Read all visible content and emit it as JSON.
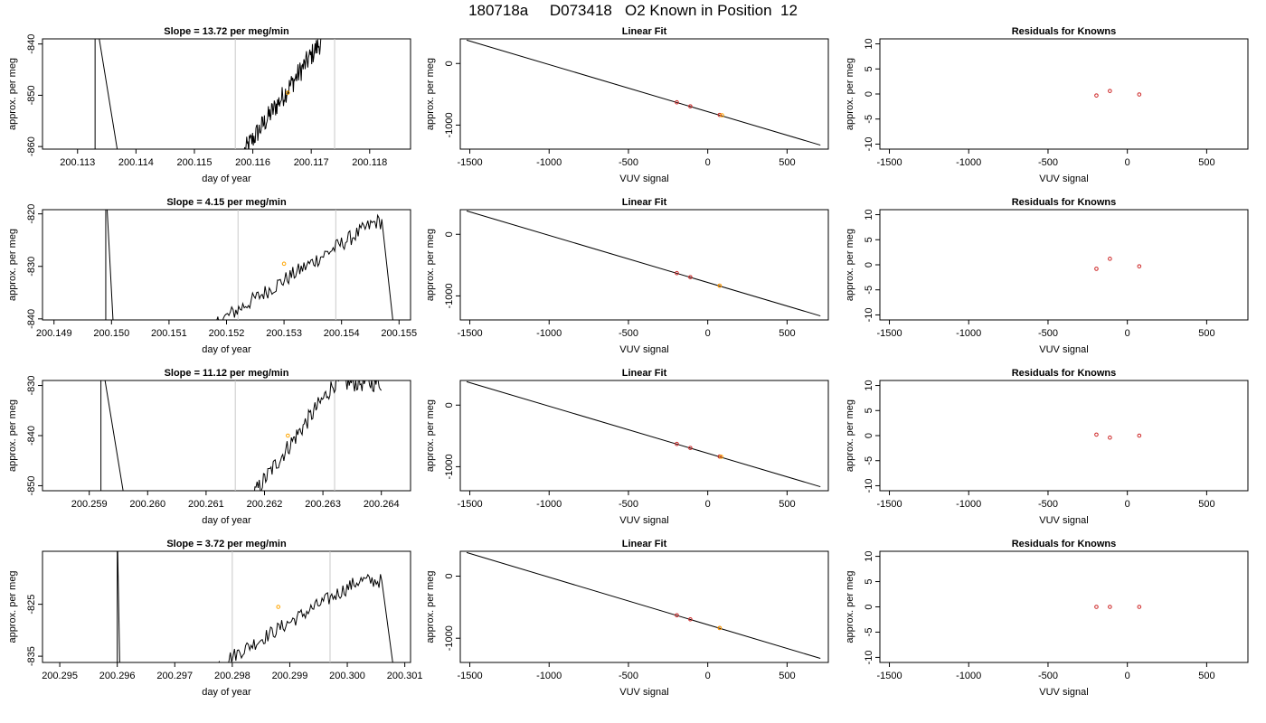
{
  "title": "180718a     D073418   O2 Known in Position  12",
  "colors": {
    "trace": "#000000",
    "vline": "#c8c8c8",
    "highlight": "#ffa500",
    "known": "#cd2626"
  },
  "chart_data": {
    "rows": [
      {
        "slope_panel": {
          "type": "line",
          "title": "Slope =  13.72  per meg/min",
          "xlabel": "day of year",
          "ylabel": "approx. per meg",
          "xlim": [
            200.1124,
            200.1187
          ],
          "ylim": [
            -860.5,
            -839.0
          ],
          "xticks": [
            200.113,
            200.114,
            200.115,
            200.116,
            200.117,
            200.118
          ],
          "xtick_labels": [
            "200.113",
            "200.114",
            "200.115",
            "200.116",
            "200.117",
            "200.118"
          ],
          "yticks": [
            -860,
            -850,
            -840
          ],
          "ytick_labels": [
            "-860",
            "-850",
            "-840"
          ],
          "vlines": [
            200.1157,
            200.1174
          ],
          "highlight_point": {
            "x": 200.1166,
            "y": -849.5
          },
          "spike": {
            "up_start": 200.1133,
            "down_end": 200.11375
          },
          "rise": {
            "x0": 200.11585,
            "y0": -861,
            "x1": 200.1172,
            "y1": -839,
            "noise": 2.2
          }
        },
        "fit_panel": {
          "type": "scatter",
          "title": "Linear Fit",
          "xlabel": "VUV signal",
          "ylabel": "approx. per meg",
          "xlim": [
            -1560,
            760
          ],
          "ylim": [
            -1390,
            400
          ],
          "xticks": [
            -1500,
            -1000,
            -500,
            0,
            500
          ],
          "xtick_labels": [
            "-1500",
            "-1000",
            "-500",
            "0",
            "500"
          ],
          "yticks": [
            -1000,
            0
          ],
          "ytick_labels": [
            "-1000",
            "0"
          ],
          "fit_line": {
            "x": [
              -1520,
              710
            ],
            "y": [
              380,
              -1325
            ]
          },
          "known_points": [
            {
              "x": -195,
              "y": -630
            },
            {
              "x": -110,
              "y": -695
            },
            {
              "x": 75,
              "y": -835
            }
          ],
          "highlight_point": {
            "x": 90,
            "y": -840
          }
        },
        "resid_panel": {
          "type": "scatter",
          "title": "Residuals for Knowns",
          "xlabel": "VUV signal",
          "ylabel": "approx. per meg",
          "xlim": [
            -1560,
            760
          ],
          "ylim": [
            -11,
            11
          ],
          "xticks": [
            -1500,
            -1000,
            -500,
            0,
            500
          ],
          "xtick_labels": [
            "-1500",
            "-1000",
            "-500",
            "0",
            "500"
          ],
          "yticks": [
            -10,
            -5,
            0,
            5,
            10
          ],
          "ytick_labels": [
            "-10",
            "-5",
            "0",
            "5",
            "10"
          ],
          "points": [
            {
              "x": -195,
              "y": -0.3
            },
            {
              "x": -110,
              "y": 0.6
            },
            {
              "x": 75,
              "y": -0.1
            }
          ]
        }
      },
      {
        "slope_panel": {
          "type": "line",
          "title": "Slope =  4.15  per meg/min",
          "xlabel": "day of year",
          "ylabel": "approx. per meg",
          "xlim": [
            200.1488,
            200.1552
          ],
          "ylim": [
            -840.2,
            -819.2
          ],
          "xticks": [
            200.149,
            200.15,
            200.151,
            200.152,
            200.153,
            200.154,
            200.155
          ],
          "xtick_labels": [
            "200.149",
            "200.150",
            "200.151",
            "200.152",
            "200.153",
            "200.154",
            "200.155"
          ],
          "yticks": [
            -840,
            -830,
            -820
          ],
          "ytick_labels": [
            "-840",
            "-830",
            "-820"
          ],
          "vlines": [
            200.1522,
            200.1539
          ],
          "highlight_point": {
            "x": 200.153,
            "y": -829.5
          },
          "spike": {
            "up_start": 200.1499,
            "down_end": 200.15005
          },
          "rise": {
            "x0": 200.1518,
            "y0": -841,
            "x1": 200.1546,
            "y1": -821.5,
            "noise": 1.5,
            "fall_x": 200.1549,
            "fall_y": -841
          }
        },
        "fit_panel": {
          "type": "scatter",
          "title": "Linear Fit",
          "xlabel": "VUV signal",
          "ylabel": "approx. per meg",
          "xlim": [
            -1560,
            760
          ],
          "ylim": [
            -1390,
            400
          ],
          "xticks": [
            -1500,
            -1000,
            -500,
            0,
            500
          ],
          "xtick_labels": [
            "-1500",
            "-1000",
            "-500",
            "0",
            "500"
          ],
          "yticks": [
            -1000,
            0
          ],
          "ytick_labels": [
            "-1000",
            "0"
          ],
          "fit_line": {
            "x": [
              -1520,
              710
            ],
            "y": [
              380,
              -1325
            ]
          },
          "known_points": [
            {
              "x": -195,
              "y": -630
            },
            {
              "x": -110,
              "y": -695
            },
            {
              "x": 75,
              "y": -835
            }
          ],
          "highlight_point": {
            "x": 75,
            "y": -835
          }
        },
        "resid_panel": {
          "type": "scatter",
          "title": "Residuals for Knowns",
          "xlabel": "VUV signal",
          "ylabel": "approx. per meg",
          "xlim": [
            -1560,
            760
          ],
          "ylim": [
            -11,
            11
          ],
          "xticks": [
            -1500,
            -1000,
            -500,
            0,
            500
          ],
          "xtick_labels": [
            "-1500",
            "-1000",
            "-500",
            "0",
            "500"
          ],
          "yticks": [
            -10,
            -5,
            0,
            5,
            10
          ],
          "ytick_labels": [
            "-10",
            "-5",
            "0",
            "5",
            "10"
          ],
          "points": [
            {
              "x": -195,
              "y": -0.8
            },
            {
              "x": -110,
              "y": 1.2
            },
            {
              "x": 75,
              "y": -0.3
            }
          ]
        }
      },
      {
        "slope_panel": {
          "type": "line",
          "title": "Slope =  11.12  per meg/min",
          "xlabel": "day of year",
          "ylabel": "approx. per meg",
          "xlim": [
            200.2582,
            200.2645
          ],
          "ylim": [
            -851,
            -829
          ],
          "xticks": [
            200.259,
            200.26,
            200.261,
            200.262,
            200.263,
            200.264
          ],
          "xtick_labels": [
            "200.259",
            "200.260",
            "200.261",
            "200.262",
            "200.263",
            "200.264"
          ],
          "yticks": [
            -850,
            -840,
            -830
          ],
          "ytick_labels": [
            "-850",
            "-840",
            "-830"
          ],
          "vlines": [
            200.2615,
            200.2632
          ],
          "highlight_point": {
            "x": 200.2624,
            "y": -840
          },
          "spike": {
            "up_start": 200.2592,
            "down_end": 200.25965
          },
          "rise": {
            "x0": 200.2618,
            "y0": -852,
            "x1": 200.2632,
            "y1": -829.5,
            "noise": 1.8,
            "flat_end": 200.264
          }
        },
        "fit_panel": {
          "type": "scatter",
          "title": "Linear Fit",
          "xlabel": "VUV signal",
          "ylabel": "approx. per meg",
          "xlim": [
            -1560,
            760
          ],
          "ylim": [
            -1390,
            400
          ],
          "xticks": [
            -1500,
            -1000,
            -500,
            0,
            500
          ],
          "xtick_labels": [
            "-1500",
            "-1000",
            "-500",
            "0",
            "500"
          ],
          "yticks": [
            -1000,
            0
          ],
          "ytick_labels": [
            "-1000",
            "0"
          ],
          "fit_line": {
            "x": [
              -1520,
              710
            ],
            "y": [
              380,
              -1325
            ]
          },
          "known_points": [
            {
              "x": -195,
              "y": -630
            },
            {
              "x": -110,
              "y": -695
            },
            {
              "x": 75,
              "y": -835
            }
          ],
          "highlight_point": {
            "x": 85,
            "y": -838
          }
        },
        "resid_panel": {
          "type": "scatter",
          "title": "Residuals for Knowns",
          "xlabel": "VUV signal",
          "ylabel": "approx. per meg",
          "xlim": [
            -1560,
            760
          ],
          "ylim": [
            -11,
            11
          ],
          "xticks": [
            -1500,
            -1000,
            -500,
            0,
            500
          ],
          "xtick_labels": [
            "-1500",
            "-1000",
            "-500",
            "0",
            "500"
          ],
          "yticks": [
            -10,
            -5,
            0,
            5,
            10
          ],
          "ytick_labels": [
            "-10",
            "-5",
            "0",
            "5",
            "10"
          ],
          "points": [
            {
              "x": -195,
              "y": 0.2
            },
            {
              "x": -110,
              "y": -0.4
            },
            {
              "x": 75,
              "y": 0.0
            }
          ]
        }
      },
      {
        "slope_panel": {
          "type": "line",
          "title": "Slope =  3.72  per meg/min",
          "xlabel": "day of year",
          "ylabel": "approx. per meg",
          "xlim": [
            200.2947,
            200.3011
          ],
          "ylim": [
            -836.2,
            -814.8
          ],
          "xticks": [
            200.295,
            200.296,
            200.297,
            200.298,
            200.299,
            200.3,
            200.301
          ],
          "xtick_labels": [
            "200.295",
            "200.296",
            "200.297",
            "200.298",
            "200.299",
            "200.300",
            "200.301"
          ],
          "yticks": [
            -835,
            -825
          ],
          "ytick_labels": [
            "-835",
            "-825"
          ],
          "vlines": [
            200.298,
            200.2997
          ],
          "highlight_point": {
            "x": 200.2988,
            "y": -825.5
          },
          "spike": {
            "up_start": 200.296,
            "down_end": 200.29605
          },
          "rise": {
            "x0": 200.2977,
            "y0": -837,
            "x1": 200.3002,
            "y1": -820.5,
            "noise": 1.4,
            "fall_x": 200.3008,
            "fall_y": -837
          }
        },
        "fit_panel": {
          "type": "scatter",
          "title": "Linear Fit",
          "xlabel": "VUV signal",
          "ylabel": "approx. per meg",
          "xlim": [
            -1560,
            760
          ],
          "ylim": [
            -1390,
            400
          ],
          "xticks": [
            -1500,
            -1000,
            -500,
            0,
            500
          ],
          "xtick_labels": [
            "-1500",
            "-1000",
            "-500",
            "0",
            "500"
          ],
          "yticks": [
            -1000,
            0
          ],
          "ytick_labels": [
            "-1000",
            "0"
          ],
          "fit_line": {
            "x": [
              -1520,
              710
            ],
            "y": [
              380,
              -1325
            ]
          },
          "known_points": [
            {
              "x": -195,
              "y": -630
            },
            {
              "x": -110,
              "y": -695
            },
            {
              "x": 75,
              "y": -835
            }
          ],
          "highlight_point": {
            "x": 75,
            "y": -835
          }
        },
        "resid_panel": {
          "type": "scatter",
          "title": "Residuals for Knowns",
          "xlabel": "VUV signal",
          "ylabel": "approx. per meg",
          "xlim": [
            -1560,
            760
          ],
          "ylim": [
            -11,
            11
          ],
          "xticks": [
            -1500,
            -1000,
            -500,
            0,
            500
          ],
          "xtick_labels": [
            "-1500",
            "-1000",
            "-500",
            "0",
            "500"
          ],
          "yticks": [
            -10,
            -5,
            0,
            5,
            10
          ],
          "ytick_labels": [
            "-10",
            "-5",
            "0",
            "5",
            "10"
          ],
          "points": [
            {
              "x": -195,
              "y": 0.0
            },
            {
              "x": -110,
              "y": 0.0
            },
            {
              "x": 75,
              "y": 0.0
            }
          ]
        }
      }
    ]
  }
}
